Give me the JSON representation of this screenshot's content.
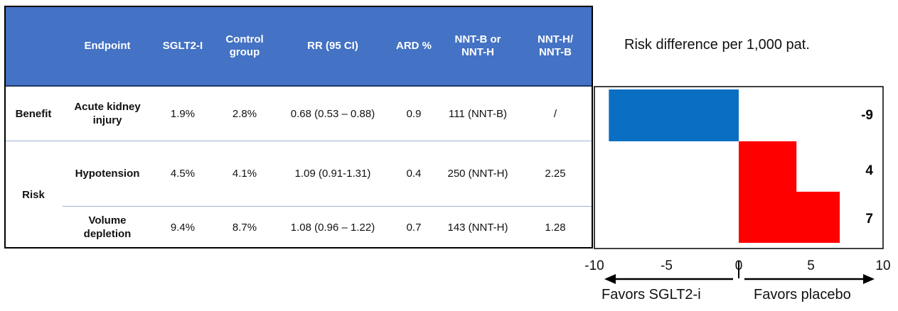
{
  "table": {
    "headers": [
      "",
      "Endpoint",
      "SGLT2-I",
      "Control group",
      "RR (95 CI)",
      "ARD %",
      "NNT-B or NNT-H",
      "NNT-H/ NNT-B"
    ],
    "groups": [
      {
        "label": "Benefit"
      },
      {
        "label": "Risk"
      }
    ],
    "rows": [
      {
        "endpoint": "Acute kidney injury",
        "sglt2i": "1.9%",
        "control": "2.8%",
        "rr": "0.68 (0.53 – 0.88)",
        "ard": "0.9",
        "nnt": "111 (NNT-B)",
        "ratio": "/"
      },
      {
        "endpoint": "Hypotension",
        "sglt2i": "4.5%",
        "control": "4.1%",
        "rr": "1.09 (0.91-1.31)",
        "ard": "0.4",
        "nnt": "250 (NNT-H)",
        "ratio": "2.25"
      },
      {
        "endpoint": "Volume depletion",
        "sglt2i": "9.4%",
        "control": "8.7%",
        "rr": "1.08 (0.96 – 1.22)",
        "ard": "0.7",
        "nnt": "143 (NNT-H)",
        "ratio": "1.28"
      }
    ]
  },
  "chart_data": {
    "type": "bar",
    "orientation": "horizontal",
    "title": "Risk difference per 1,000 pat.",
    "categories": [
      "Acute kidney injury",
      "Hypotension",
      "Volume depletion"
    ],
    "values": [
      -9,
      4,
      7
    ],
    "value_labels": [
      "-9",
      "4",
      "7"
    ],
    "colors": [
      "#0a6fc2",
      "#ff0000",
      "#ff0000"
    ],
    "xlim": [
      -10,
      10
    ],
    "xticks": [
      "-10",
      "-5",
      "0",
      "5",
      "10"
    ],
    "grid": false,
    "direction_labels": {
      "left": "Favors SGLT2-i",
      "right": "Favors placebo"
    }
  }
}
